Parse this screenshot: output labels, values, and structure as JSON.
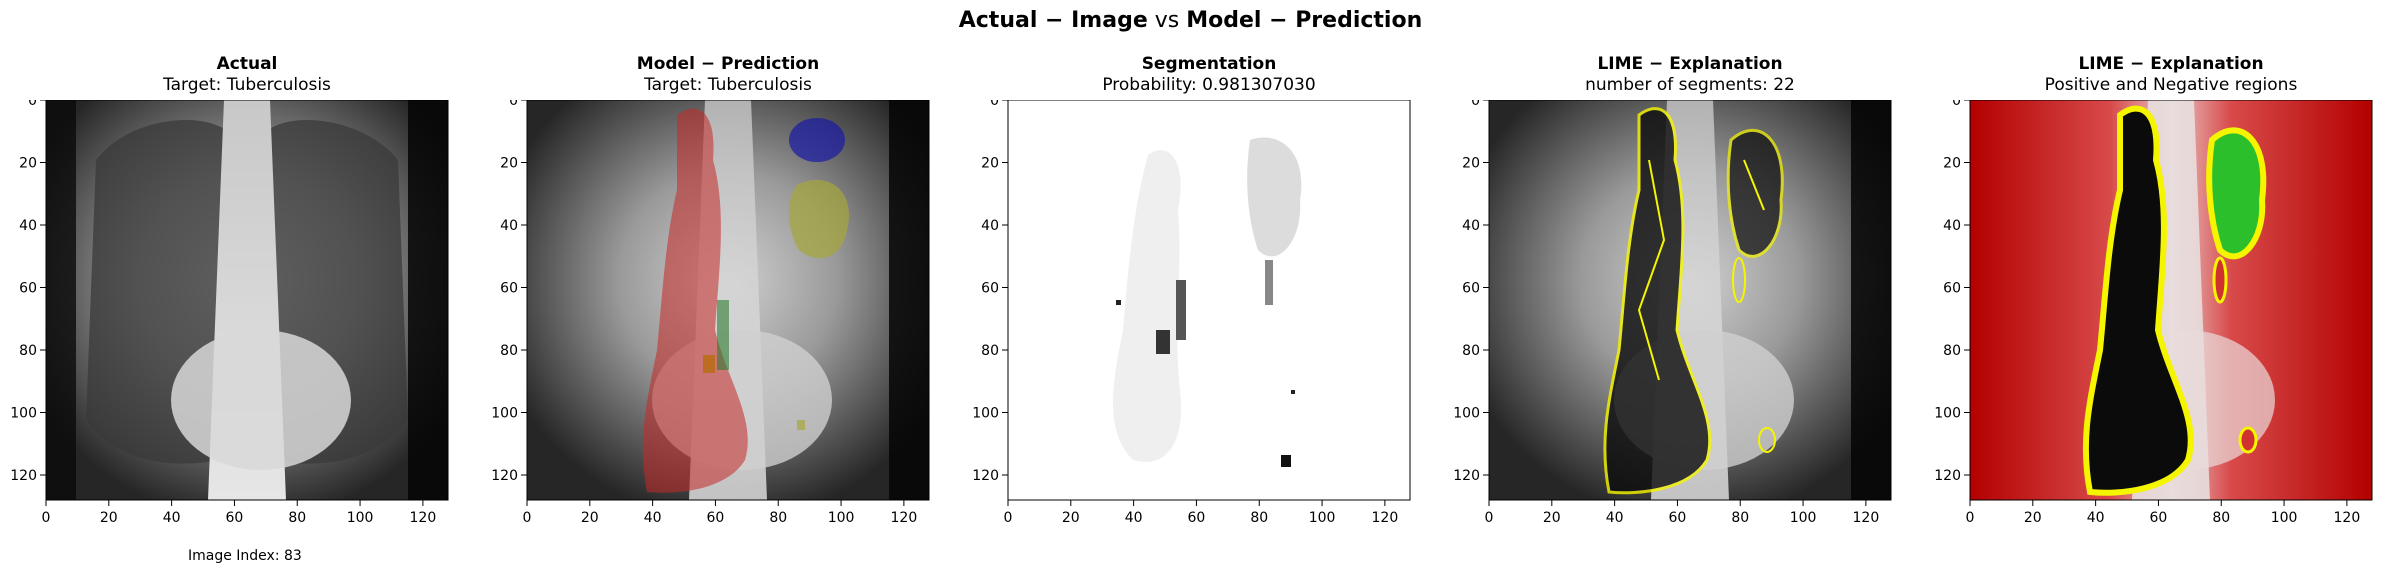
{
  "figure": {
    "title_a": "Actual − Image",
    "title_vs": " vs ",
    "title_b": "Model − Prediction"
  },
  "panels": [
    {
      "title": "Actual",
      "subtitle": "Target: Tuberculosis"
    },
    {
      "title": "Model − Prediction",
      "subtitle": "Target: Tuberculosis"
    },
    {
      "title": "Segmentation",
      "subtitle": "Probability: 0.981307030"
    },
    {
      "title": "LIME − Explanation",
      "subtitle": "number of segments: 22"
    },
    {
      "title": "LIME − Explanation",
      "subtitle": "Positive and Negative regions"
    }
  ],
  "axes": {
    "x_ticks": [
      "0",
      "20",
      "40",
      "60",
      "80",
      "100",
      "120"
    ],
    "y_ticks": [
      "0",
      "20",
      "40",
      "60",
      "80",
      "100",
      "120"
    ],
    "xlim": [
      0,
      128
    ],
    "ylim": [
      128,
      0
    ]
  },
  "footer": {
    "image_index": "Image Index: 83"
  },
  "colors": {
    "red_region": "#c62828",
    "green_region": "#2bbf2b",
    "yellow_outline": "#f5f500",
    "blue_region": "#1a1aa6",
    "olive_region": "#a7a63c"
  }
}
